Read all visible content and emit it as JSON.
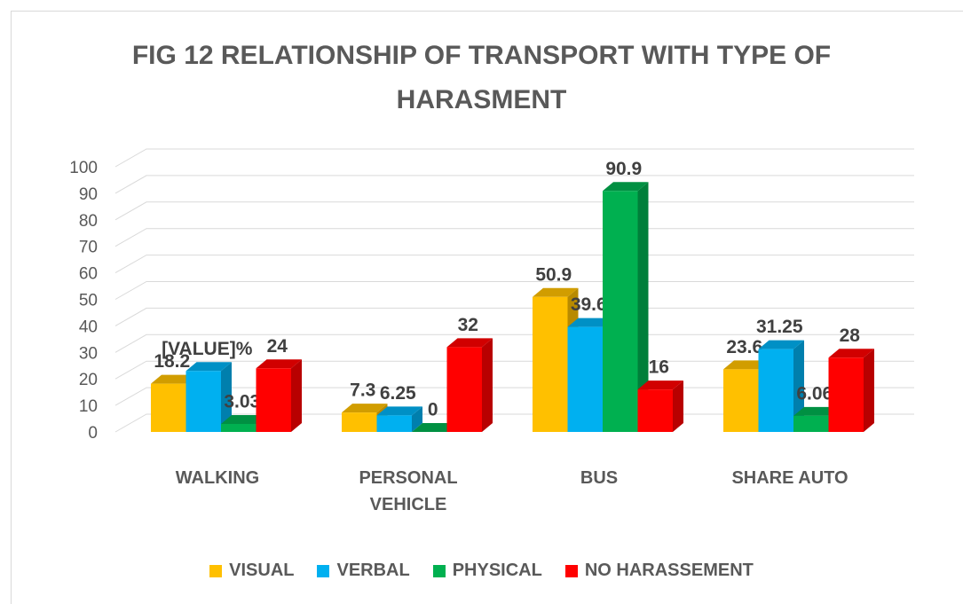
{
  "chart_data": {
    "type": "bar3d",
    "title": "FIG 12 RELATIONSHIP OF TRANSPORT WITH TYPE OF HARASMENT",
    "categories": [
      "WALKING",
      "PERSONAL VEHICLE",
      "BUS",
      "SHARE AUTO"
    ],
    "series": [
      {
        "name": "VISUAL",
        "color": "#FFC000",
        "values": [
          18.2,
          7.3,
          50.9,
          23.6
        ]
      },
      {
        "name": "VERBAL",
        "color": "#00B0F0",
        "values": [
          23,
          6.25,
          39.6,
          31.25
        ],
        "value_labels": [
          "[VALUE]%",
          "6.25",
          "39.6",
          "31.25"
        ]
      },
      {
        "name": "PHYSICAL",
        "color": "#00B050",
        "values": [
          3.03,
          0,
          90.9,
          6.06
        ]
      },
      {
        "name": "NO HARASSEMENT",
        "color": "#FF0000",
        "values": [
          24,
          32,
          16,
          28
        ]
      }
    ],
    "ylim": [
      0,
      100
    ],
    "yticks": [
      0,
      10,
      20,
      30,
      40,
      50,
      60,
      70,
      80,
      90,
      100
    ],
    "grid": true,
    "legend": "bottom"
  }
}
